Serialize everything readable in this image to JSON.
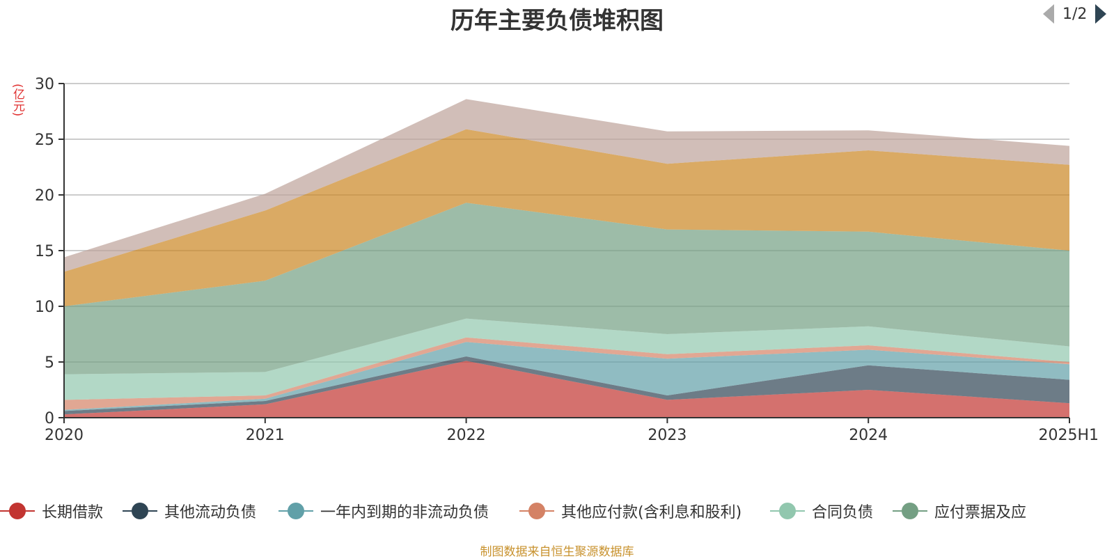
{
  "chart_data": {
    "type": "area",
    "stacked": true,
    "title": "历年主要负债堆积图",
    "ylabel": "(亿元)",
    "xlabel": "",
    "categories": [
      "2020",
      "2021",
      "2022",
      "2023",
      "2024",
      "2025H1"
    ],
    "ylim": [
      0,
      30
    ],
    "yticks": [
      0,
      5,
      10,
      15,
      20,
      25,
      30
    ],
    "grid": true,
    "legend_position": "bottom",
    "series": [
      {
        "name": "长期借款",
        "color": "#c23531",
        "values": [
          0.3,
          1.2,
          5.1,
          1.6,
          2.5,
          1.3
        ]
      },
      {
        "name": "其他流动负债",
        "color": "#2f4554",
        "values": [
          0.3,
          0.3,
          0.4,
          0.4,
          2.2,
          2.1
        ]
      },
      {
        "name": "一年内到期的非流动负债",
        "color": "#61a0a8",
        "values": [
          0.1,
          0.2,
          1.3,
          3.3,
          1.4,
          1.4
        ]
      },
      {
        "name": "其他应付款(含利息和股利)",
        "color": "#d48265",
        "values": [
          0.9,
          0.3,
          0.4,
          0.4,
          0.4,
          0.2
        ]
      },
      {
        "name": "合同负债",
        "color": "#91c7ae",
        "values": [
          2.3,
          2.1,
          1.7,
          1.8,
          1.7,
          1.4
        ]
      },
      {
        "name": "应付票据及应付账款",
        "color": "#749f83",
        "values": [
          6.1,
          8.2,
          10.4,
          9.4,
          8.5,
          8.6
        ]
      },
      {
        "name": "",
        "color": "#ca8622",
        "values": [
          3.1,
          6.3,
          6.6,
          5.9,
          7.3,
          7.7
        ]
      },
      {
        "name": "",
        "color": "#bda29a",
        "values": [
          1.3,
          1.5,
          2.7,
          2.9,
          1.8,
          1.7
        ]
      }
    ]
  },
  "legend": {
    "visible_items": [
      {
        "label": "长期借款",
        "color": "#c23531"
      },
      {
        "label": "其他流动负债",
        "color": "#2f4554"
      },
      {
        "label": "一年内到期的非流动负债",
        "color": "#61a0a8"
      },
      {
        "label": "其他应付款(含利息和股利)",
        "color": "#d48265"
      },
      {
        "label": "合同负债",
        "color": "#91c7ae"
      },
      {
        "label": "应付票据及应",
        "color": "#749f83"
      }
    ],
    "page_text": "1/2"
  },
  "source_note": "制图数据来自恒生聚源数据库"
}
